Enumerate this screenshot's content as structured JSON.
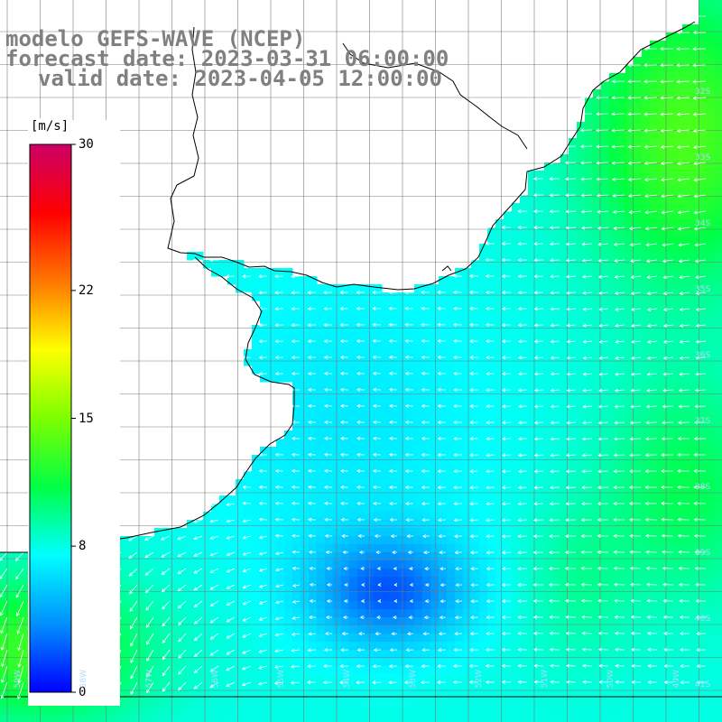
{
  "title": {
    "model": "modelo GEFS-WAVE (NCEP)",
    "forecast": "forecast date: 2023-03-31 06:00:00",
    "valid": "valid date: 2023-04-05 12:00:00"
  },
  "colorbar": {
    "unit": "[m/s]",
    "min": 0,
    "max": 30,
    "ticks": [
      {
        "value": 30,
        "label": "30"
      },
      {
        "value": 22,
        "label": "22"
      },
      {
        "value": 15,
        "label": "15"
      },
      {
        "value": 8,
        "label": "8"
      },
      {
        "value": 0,
        "label": "0"
      }
    ],
    "palette": [
      "#0000ff",
      "#0090ff",
      "#00ffff",
      "#00ff44",
      "#7cff00",
      "#ffff00",
      "#ff7700",
      "#ff0000",
      "#cc0066"
    ]
  },
  "map": {
    "region": "Rio de la Plata - Uruguay / Buenos Aires coast",
    "lat_labels": [
      "32S",
      "33S",
      "34S",
      "35S",
      "36S",
      "37S",
      "38S",
      "39S",
      "40S",
      "41S"
    ],
    "lon_labels": [
      "59W",
      "58W",
      "57W",
      "56W",
      "55W",
      "54W",
      "53W",
      "52W",
      "51W",
      "50W",
      "49W"
    ],
    "field": "10m wind speed and direction",
    "wind_minimum_speed_ms": 2,
    "wind_general_direction": "from the east/southeast, toward the southwest near the coast"
  }
}
